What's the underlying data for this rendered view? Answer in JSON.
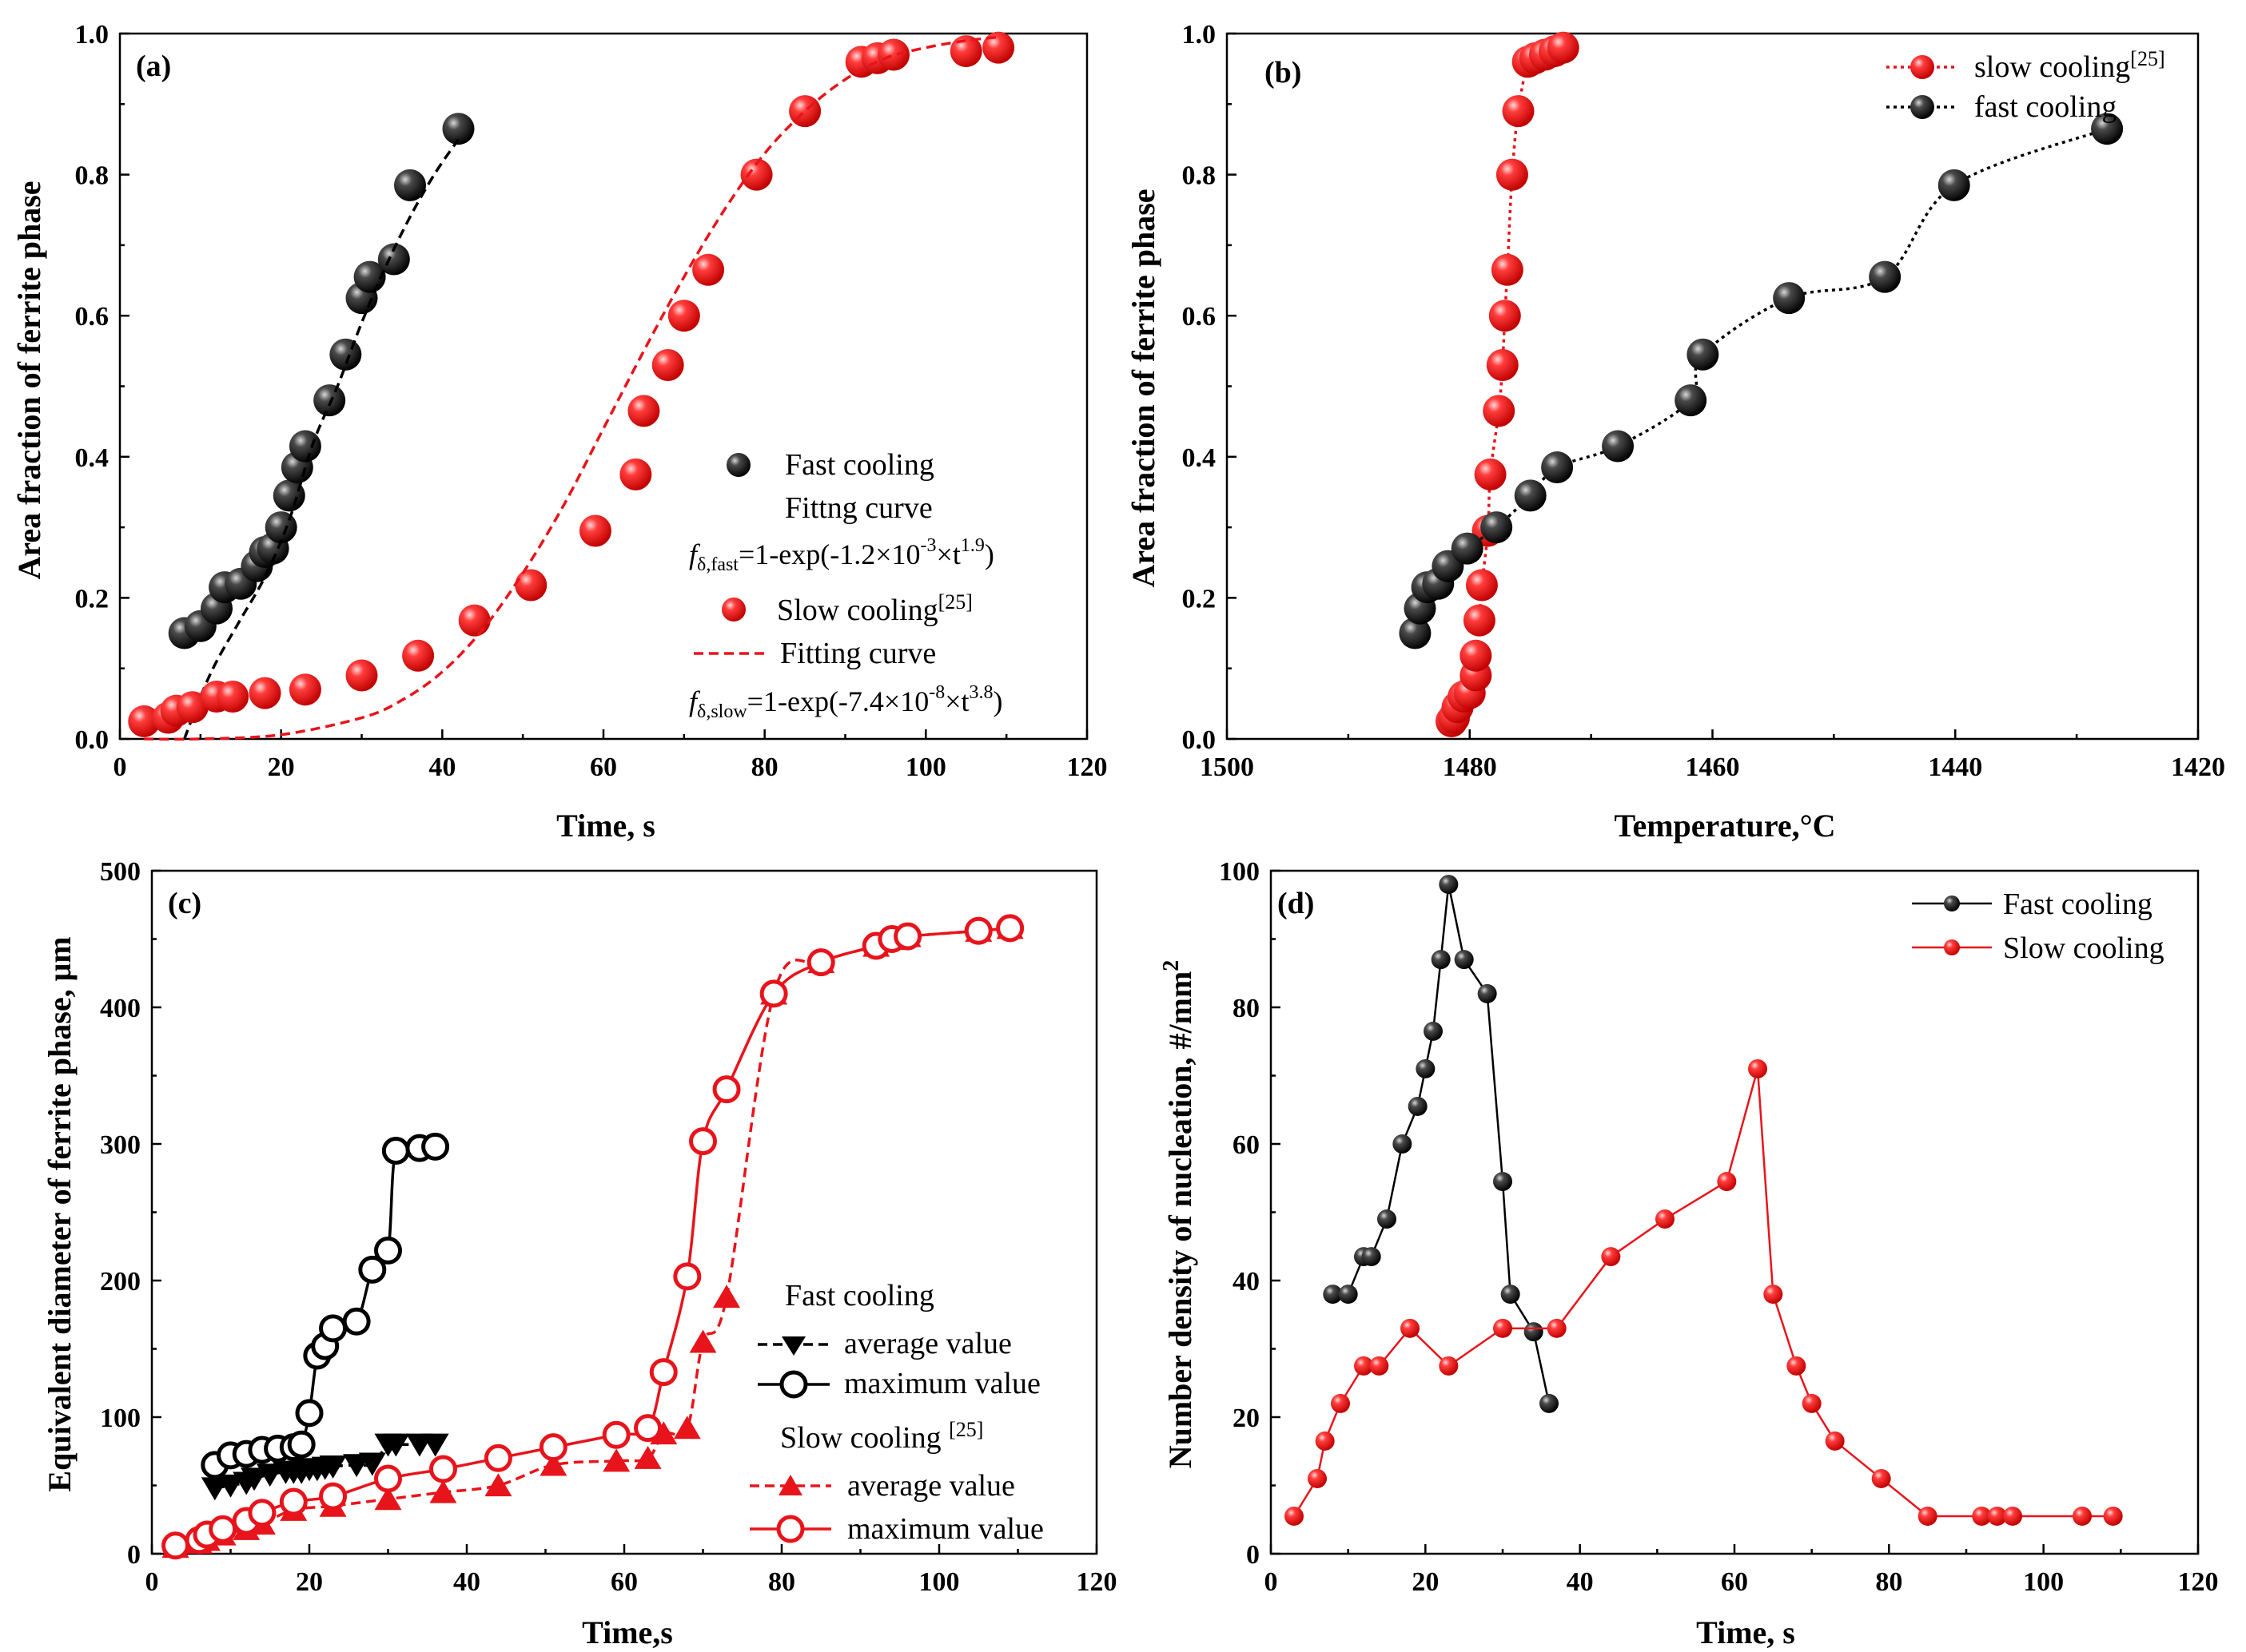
{
  "colors": {
    "fast": "#000000",
    "slow": "#e8141b",
    "axis": "#000000"
  },
  "chart_data": [
    {
      "id": "a",
      "type": "scatter",
      "panel_label": "(a)",
      "xlabel": "Time, s",
      "ylabel": "Area fraction of ferrite phase",
      "xlim": [
        0,
        120
      ],
      "ylim": [
        0,
        1.0
      ],
      "xticks": [
        "0",
        "20",
        "40",
        "60",
        "80",
        "100",
        "120"
      ],
      "yticks": [
        "0.0",
        "0.2",
        "0.4",
        "0.6",
        "0.8",
        "1.0"
      ],
      "series": [
        {
          "name": "Fast cooling",
          "color": "fast",
          "marker": "ball",
          "line": "none",
          "x": [
            8,
            10,
            12,
            13,
            15,
            17,
            18,
            19,
            20,
            21,
            22,
            23,
            26,
            28,
            30,
            31,
            34,
            36,
            42
          ],
          "y": [
            0.15,
            0.16,
            0.185,
            0.215,
            0.22,
            0.245,
            0.265,
            0.27,
            0.3,
            0.345,
            0.385,
            0.415,
            0.48,
            0.545,
            0.625,
            0.655,
            0.68,
            0.785,
            0.865
          ]
        },
        {
          "name": "Fitting curve (fast)",
          "color": "fast",
          "marker": "none",
          "line": "dashed",
          "x": [
            8,
            10,
            12,
            15,
            18,
            21,
            24,
            27,
            30,
            33,
            36,
            39,
            42
          ],
          "y": [
            0.0,
            0.06,
            0.11,
            0.17,
            0.23,
            0.31,
            0.42,
            0.5,
            0.59,
            0.67,
            0.74,
            0.8,
            0.85
          ]
        },
        {
          "name": "Slow cooling",
          "color": "slow",
          "marker": "ball",
          "line": "none",
          "x": [
            3,
            6,
            7,
            9,
            12,
            14,
            18,
            23,
            30,
            37,
            44,
            51,
            59,
            64,
            65,
            68,
            70,
            73,
            79,
            85,
            92,
            94,
            96,
            105,
            109
          ],
          "y": [
            0.025,
            0.03,
            0.04,
            0.045,
            0.06,
            0.06,
            0.065,
            0.07,
            0.09,
            0.118,
            0.168,
            0.218,
            0.295,
            0.375,
            0.465,
            0.53,
            0.6,
            0.665,
            0.8,
            0.89,
            0.96,
            0.965,
            0.97,
            0.975,
            0.98
          ]
        },
        {
          "name": "Fitting curve (slow)",
          "color": "slow",
          "marker": "none",
          "line": "dashed",
          "x": [
            3,
            10,
            20,
            30,
            35,
            40,
            45,
            50,
            55,
            60,
            65,
            70,
            75,
            80,
            85,
            90,
            95,
            100,
            105,
            109
          ],
          "y": [
            0.0,
            0.0,
            0.006,
            0.03,
            0.055,
            0.095,
            0.155,
            0.235,
            0.33,
            0.44,
            0.55,
            0.655,
            0.75,
            0.83,
            0.89,
            0.935,
            0.965,
            0.98,
            0.99,
            0.995
          ]
        }
      ],
      "legend": {
        "fast_label": "Fast cooling",
        "fast_fit_label": "Fittng curve",
        "fast_formula_f": "f",
        "fast_formula_sub": "δ,fast",
        "fast_formula_eq": "=1-exp(-1.2×10",
        "fast_formula_exp1": "-3",
        "fast_formula_mid": "×t",
        "fast_formula_exp2": "1.9",
        "fast_formula_end": ")",
        "slow_label": "Slow cooling",
        "slow_ref": "[25]",
        "slow_fit_label": "Fitting curve",
        "slow_formula_f": "f",
        "slow_formula_sub": "δ,slow",
        "slow_formula_eq": "=1-exp(-7.4×10",
        "slow_formula_exp1": "-8",
        "slow_formula_mid": "×t",
        "slow_formula_exp2": "3.8",
        "slow_formula_end": ")"
      }
    },
    {
      "id": "b",
      "type": "line",
      "panel_label": "(b)",
      "xlabel": "Temperature,°C",
      "ylabel": "Area fraction of ferrite phase",
      "xlim": [
        1500,
        1420
      ],
      "ylim": [
        0,
        1.0
      ],
      "xticks": [
        "1500",
        "1480",
        "1460",
        "1440",
        "1420"
      ],
      "yticks": [
        "0.0",
        "0.2",
        "0.4",
        "0.6",
        "0.8",
        "1.0"
      ],
      "series": [
        {
          "name": "slow cooling",
          "color": "slow",
          "marker": "ball",
          "line": "dotted",
          "x": [
            1481.5,
            1481.3,
            1481.0,
            1480.5,
            1480.0,
            1479.5,
            1479.5,
            1479.2,
            1479.0,
            1478.5,
            1478.3,
            1477.6,
            1477.3,
            1477.1,
            1476.9,
            1476.5,
            1476.0,
            1475.2,
            1474.6,
            1473.8,
            1473.0,
            1472.3
          ],
          "y": [
            0.025,
            0.03,
            0.045,
            0.06,
            0.065,
            0.09,
            0.118,
            0.168,
            0.218,
            0.295,
            0.375,
            0.465,
            0.53,
            0.6,
            0.665,
            0.8,
            0.89,
            0.96,
            0.965,
            0.97,
            0.975,
            0.98
          ]
        },
        {
          "name": "fast cooling",
          "color": "fast",
          "marker": "ball",
          "line": "dotted",
          "x": [
            1484.5,
            1484.1,
            1483.5,
            1482.6,
            1481.8,
            1480.2,
            1477.8,
            1475.0,
            1472.8,
            1467.8,
            1461.8,
            1460.8,
            1453.7,
            1445.8,
            1440.1,
            1427.5
          ],
          "y": [
            0.15,
            0.185,
            0.215,
            0.22,
            0.245,
            0.27,
            0.3,
            0.345,
            0.385,
            0.415,
            0.48,
            0.545,
            0.625,
            0.655,
            0.785,
            0.865
          ]
        }
      ],
      "legend": {
        "slow_label": "slow cooling",
        "slow_ref": "[25]",
        "fast_label": "fast  cooling"
      }
    },
    {
      "id": "c",
      "type": "line",
      "panel_label": "(c)",
      "xlabel": "Time,s",
      "ylabel": "Equivalent diameter of ferrite phase, μm",
      "xlim": [
        0,
        120
      ],
      "ylim": [
        0,
        500
      ],
      "xticks": [
        "0",
        "20",
        "40",
        "60",
        "80",
        "100",
        "120"
      ],
      "yticks": [
        "0",
        "100",
        "200",
        "300",
        "400",
        "500"
      ],
      "series": [
        {
          "name": "Fast cooling average value",
          "color": "fast",
          "marker": "triangle-down",
          "line": "dashed",
          "x": [
            8,
            10,
            12,
            13,
            15,
            17,
            18,
            19,
            20,
            21,
            22,
            23,
            26,
            28,
            30,
            31,
            34,
            36
          ],
          "y": [
            48,
            50,
            52,
            55,
            58,
            60,
            60,
            60,
            62,
            62,
            63,
            64,
            65,
            66,
            80,
            80,
            80,
            80
          ]
        },
        {
          "name": "Fast cooling maximum value",
          "color": "fast",
          "marker": "ball",
          "line": "solid",
          "x": [
            8,
            10,
            12,
            14,
            16,
            18,
            19,
            20,
            21,
            22,
            23,
            26,
            28,
            30,
            31,
            34,
            36
          ],
          "y": [
            65,
            72,
            73,
            76,
            77,
            78,
            80,
            103,
            145,
            152,
            165,
            170,
            208,
            222,
            295,
            297,
            298
          ]
        },
        {
          "name": "Slow cooling average value",
          "color": "slow",
          "marker": "triangle-up",
          "line": "dashed",
          "x": [
            3,
            6,
            7,
            9,
            12,
            14,
            18,
            23,
            30,
            37,
            44,
            51,
            59,
            63,
            65,
            68,
            70,
            73,
            79,
            85,
            92,
            94,
            96,
            105,
            109
          ],
          "y": [
            5,
            8,
            10,
            14,
            18,
            22,
            32,
            35,
            40,
            45,
            50,
            65,
            68,
            70,
            88,
            92,
            155,
            188,
            410,
            433,
            445,
            450,
            452,
            456,
            458
          ]
        },
        {
          "name": "Slow cooling maximum value",
          "color": "slow",
          "marker": "ball",
          "line": "solid",
          "x": [
            3,
            6,
            7,
            9,
            12,
            14,
            18,
            23,
            30,
            37,
            44,
            51,
            59,
            63,
            65,
            68,
            70,
            73,
            79,
            85,
            92,
            94,
            96,
            105,
            109
          ],
          "y": [
            6,
            10,
            14,
            18,
            24,
            30,
            38,
            42,
            55,
            62,
            70,
            78,
            87,
            92,
            133,
            203,
            302,
            340,
            410,
            433,
            445,
            450,
            452,
            456,
            458
          ]
        }
      ],
      "legend": {
        "fast_heading": "Fast cooling",
        "avg_label": "average value",
        "max_label": "maximum value",
        "slow_heading": "Slow cooling ",
        "slow_ref": "[25]"
      }
    },
    {
      "id": "d",
      "type": "line",
      "panel_label": "(d)",
      "xlabel": "Time, s",
      "ylabel": "Number density of nucleation, #/mm",
      "ylabel_sup": "2",
      "xlim": [
        0,
        120
      ],
      "ylim": [
        0,
        100
      ],
      "xticks": [
        "0",
        "20",
        "40",
        "60",
        "80",
        "100",
        "120"
      ],
      "yticks": [
        "0",
        "20",
        "40",
        "60",
        "80",
        "100"
      ],
      "series": [
        {
          "name": "Fast cooling",
          "color": "fast",
          "marker": "ball",
          "line": "solid",
          "x": [
            8,
            10,
            12,
            13,
            15,
            17,
            19,
            20,
            21,
            22,
            23,
            25,
            28,
            30,
            31,
            34,
            36
          ],
          "y": [
            38,
            38,
            43.5,
            43.5,
            49,
            60,
            65.5,
            71,
            76.5,
            87,
            98,
            87,
            82,
            54.5,
            38,
            32.5,
            22
          ]
        },
        {
          "name": "Slow cooling",
          "color": "slow",
          "marker": "ball",
          "line": "solid",
          "x": [
            3,
            6,
            7,
            9,
            12,
            14,
            18,
            23,
            30,
            37,
            44,
            51,
            59,
            63,
            65,
            68,
            70,
            73,
            79,
            85,
            92,
            94,
            96,
            105,
            109
          ],
          "y": [
            5.5,
            11,
            16.5,
            22,
            27.5,
            27.5,
            33,
            27.5,
            33,
            33,
            43.5,
            49,
            54.5,
            71,
            38,
            27.5,
            22,
            16.5,
            11,
            5.5,
            5.5,
            5.5,
            5.5,
            5.5,
            5.5
          ]
        }
      ],
      "legend": {
        "fast_label": "Fast cooling",
        "slow_label": "Slow cooling"
      }
    }
  ]
}
